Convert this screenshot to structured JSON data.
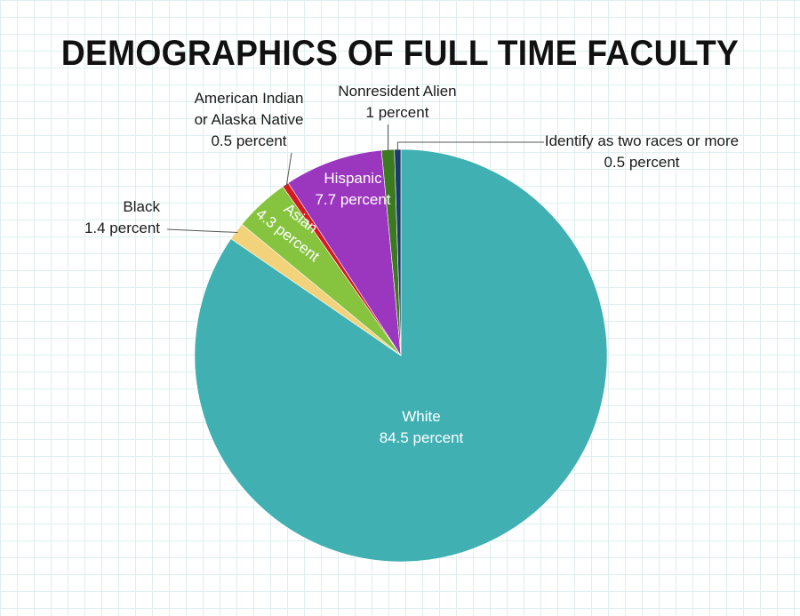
{
  "chart_data": {
    "type": "pie",
    "title": "DEMOGRAPHICS OF FULL TIME FACULTY",
    "slices": [
      {
        "name": "White",
        "value": 84.5,
        "label": "84.5 percent",
        "color": "#40b0b3"
      },
      {
        "name": "Black",
        "value": 1.4,
        "label": "1.4 percent",
        "color": "#f2d27a"
      },
      {
        "name": "Asian",
        "value": 4.3,
        "label": "4.3 percent",
        "color": "#86c440"
      },
      {
        "name": "American Indian or Alaska Native",
        "label_lines": [
          "American Indian",
          "or Alaska Native"
        ],
        "value": 0.5,
        "label": "0.5 percent",
        "color": "#d71920"
      },
      {
        "name": "Hispanic",
        "value": 7.7,
        "label": "7.7 percent",
        "color": "#9b37bf"
      },
      {
        "name": "Nonresident Alien",
        "value": 1.0,
        "label": "1 percent",
        "color": "#3b7a1e"
      },
      {
        "name": "Identify as two races or more",
        "value": 0.5,
        "label": "0.5 percent",
        "color": "#183a6e"
      }
    ],
    "start_angle_deg": 0,
    "direction": "clockwise"
  }
}
